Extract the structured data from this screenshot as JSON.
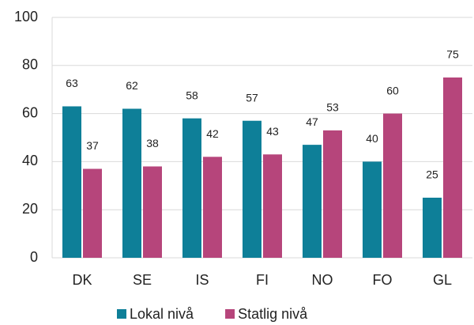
{
  "chart_data": {
    "type": "bar",
    "categories": [
      "DK",
      "SE",
      "IS",
      "FI",
      "NO",
      "FO",
      "GL"
    ],
    "series": [
      {
        "name": "Lokal nivå",
        "color": "#0e7f98",
        "values": [
          63,
          62,
          58,
          57,
          47,
          40,
          25
        ]
      },
      {
        "name": "Statlig nivå",
        "color": "#b6457b",
        "values": [
          37,
          38,
          42,
          43,
          53,
          60,
          75
        ]
      }
    ],
    "ylim": [
      0,
      100
    ],
    "yticks": [
      0,
      20,
      40,
      60,
      80,
      100
    ],
    "grid": true,
    "legend": "bottom"
  }
}
